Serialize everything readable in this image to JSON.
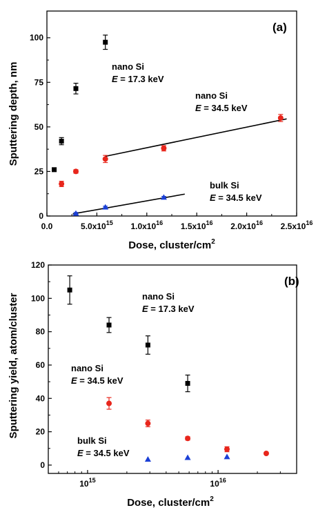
{
  "chart_data": [
    {
      "panel": "(a)",
      "type": "scatter",
      "xlabel": "Dose, cluster/cm",
      "xlabel_sup": "2",
      "ylabel": "Sputtering depth, nm",
      "xscale": "linear",
      "xlim": [
        0,
        2.5e+16
      ],
      "ylim": [
        0,
        115
      ],
      "x_ticks": [
        {
          "value": 0,
          "label": "0.0",
          "exp": ""
        },
        {
          "value": 5000000000000000.0,
          "label": "5.0x10",
          "exp": "15"
        },
        {
          "value": 1e+16,
          "label": "1.0x10",
          "exp": "16"
        },
        {
          "value": 1.5e+16,
          "label": "1.5x10",
          "exp": "16"
        },
        {
          "value": 2e+16,
          "label": "2.0x10",
          "exp": "16"
        },
        {
          "value": 2.5e+16,
          "label": "2.5x10",
          "exp": "16"
        }
      ],
      "y_ticks": [
        {
          "value": 0,
          "label": "0"
        },
        {
          "value": 25,
          "label": "25"
        },
        {
          "value": 50,
          "label": "50"
        },
        {
          "value": 75,
          "label": "75"
        },
        {
          "value": 100,
          "label": "100"
        }
      ],
      "series": [
        {
          "marker": "square",
          "color": "#000000",
          "x": [
            730000000000000.0,
            1460000000000000.0,
            2900000000000000.0,
            5850000000000000.0
          ],
          "y": [
            26,
            42,
            71.5,
            97.5
          ],
          "err": [
            1,
            2,
            3,
            4
          ]
        },
        {
          "marker": "circle",
          "color": "#e8261c",
          "x": [
            1460000000000000.0,
            2900000000000000.0,
            5850000000000000.0,
            1.17e+16,
            2.34e+16
          ],
          "y": [
            18,
            25,
            32,
            38,
            55
          ],
          "err": [
            1.5,
            1,
            2,
            1.5,
            2
          ]
        },
        {
          "marker": "triangle",
          "color": "#1a3fd6",
          "x": [
            2900000000000000.0,
            5850000000000000.0,
            1.17e+16
          ],
          "y": [
            1.5,
            5,
            10.5
          ],
          "err": [
            0.5,
            0.5,
            0.5
          ]
        }
      ],
      "fit_lines": [
        {
          "x": [
            5850000000000000.0,
            2.4e+16
          ],
          "y": [
            33.5,
            54.5
          ]
        },
        {
          "x": [
            2600000000000000.0,
            1.38e+16
          ],
          "y": [
            1.2,
            12.3
          ]
        }
      ],
      "annotations": [
        {
          "id": "a-nano-17",
          "line1": "nano Si",
          "line2_italic": "E",
          "line2": " = 17.3 keV"
        },
        {
          "id": "a-nano-34",
          "line1": "nano Si",
          "line2_italic": "E",
          "line2": " = 34.5 keV"
        },
        {
          "id": "a-bulk-34",
          "line1": "bulk Si",
          "line2_italic": "E",
          "line2": " = 34.5 keV"
        }
      ]
    },
    {
      "panel": "(b)",
      "type": "scatter",
      "xlabel": "Dose, cluster/cm",
      "xlabel_sup": "2",
      "ylabel": "Sputtering yield, atom/cluster",
      "xscale": "log",
      "xlim": [
        500000000000000.0,
        4e+16
      ],
      "ylim": [
        -5,
        120
      ],
      "x_ticks": [
        {
          "value": 1000000000000000.0,
          "label": "10",
          "exp": "15"
        },
        {
          "value": 1e+16,
          "label": "10",
          "exp": "16"
        }
      ],
      "y_ticks": [
        {
          "value": 0,
          "label": "0"
        },
        {
          "value": 20,
          "label": "20"
        },
        {
          "value": 40,
          "label": "40"
        },
        {
          "value": 60,
          "label": "60"
        },
        {
          "value": 80,
          "label": "80"
        },
        {
          "value": 100,
          "label": "100"
        },
        {
          "value": 120,
          "label": "120"
        }
      ],
      "series": [
        {
          "marker": "square",
          "color": "#000000",
          "x": [
            730000000000000.0,
            1460000000000000.0,
            2900000000000000.0,
            5850000000000000.0
          ],
          "y": [
            105,
            84,
            72,
            49
          ],
          "err": [
            8.5,
            4.5,
            5.5,
            5
          ]
        },
        {
          "marker": "circle",
          "color": "#e8261c",
          "x": [
            1460000000000000.0,
            2900000000000000.0,
            5850000000000000.0,
            1.17e+16,
            2.34e+16
          ],
          "y": [
            37,
            25,
            16,
            9.5,
            7
          ],
          "err": [
            3.5,
            2,
            1,
            1.5,
            0.5
          ]
        },
        {
          "marker": "triangle",
          "color": "#1a3fd6",
          "x": [
            2900000000000000.0,
            5850000000000000.0,
            1.17e+16
          ],
          "y": [
            3.5,
            4.5,
            5
          ],
          "err": [
            0,
            0,
            0
          ]
        }
      ],
      "fit_lines": [],
      "annotations": [
        {
          "id": "b-nano-17",
          "line1": "nano Si",
          "line2_italic": "E",
          "line2": " = 17.3 keV"
        },
        {
          "id": "b-nano-34",
          "line1": "nano Si",
          "line2_italic": "E",
          "line2": " = 34.5 keV"
        },
        {
          "id": "b-bulk-34",
          "line1": "bulk Si",
          "line2_italic": "E",
          "line2": " = 34.5 keV"
        }
      ]
    }
  ]
}
